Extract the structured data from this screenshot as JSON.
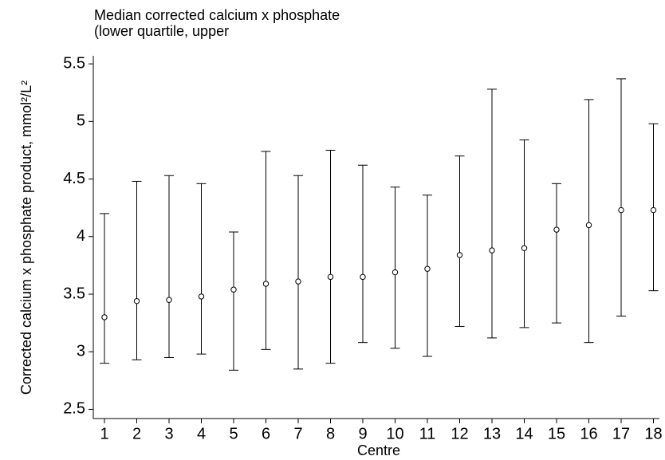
{
  "chart_data": {
    "type": "errorbar",
    "title": [
      "Median corrected calcium x phosphate",
      "(lower quartile, upper"
    ],
    "x_label": "Centre",
    "y_label": "Corrected calcium x phosphate product, mmol²/L²",
    "categories": [
      "1",
      "2",
      "3",
      "4",
      "5",
      "6",
      "7",
      "8",
      "9",
      "10",
      "11",
      "12",
      "13",
      "14",
      "15",
      "16",
      "17",
      "18"
    ],
    "values": [
      3.3,
      3.44,
      3.45,
      3.48,
      3.54,
      3.59,
      3.61,
      3.65,
      3.65,
      3.69,
      3.72,
      3.84,
      3.88,
      3.9,
      4.06,
      4.1,
      4.23,
      4.23
    ],
    "lower": [
      2.9,
      2.93,
      2.95,
      2.98,
      2.84,
      3.02,
      2.85,
      2.9,
      3.08,
      3.03,
      2.96,
      3.22,
      3.12,
      3.21,
      3.25,
      3.08,
      3.31,
      3.53
    ],
    "upper": [
      4.2,
      4.48,
      4.53,
      4.46,
      4.04,
      4.74,
      4.53,
      4.75,
      4.62,
      4.43,
      4.36,
      4.7,
      5.28,
      4.84,
      4.46,
      5.19,
      5.37,
      4.98
    ],
    "color": "#000000",
    "ylim": [
      2.42,
      5.57
    ],
    "yticks": [
      2.5,
      3,
      3.5,
      4,
      4.5,
      5,
      5.5
    ],
    "grid": false
  }
}
